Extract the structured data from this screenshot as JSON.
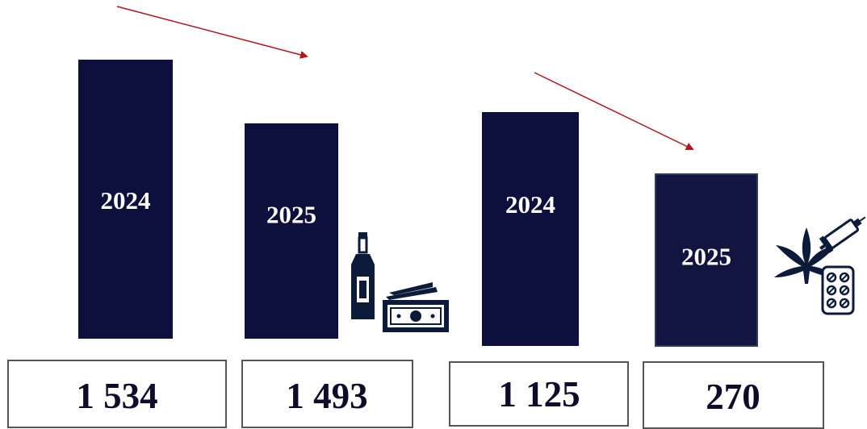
{
  "colors": {
    "bar": "#0d0f3d",
    "bar_last": "#111540",
    "arrow": "#b0151d",
    "icon": "#0d1b3a",
    "text_dark": "#0d0d2b"
  },
  "chart_data": [
    {
      "type": "bar",
      "categories": [
        "2024",
        "2025"
      ],
      "values": [
        1534,
        1493
      ],
      "value_labels": [
        "1 534",
        "1 493"
      ],
      "icons": [
        "bottle-icon",
        "money-icon"
      ]
    },
    {
      "type": "bar",
      "categories": [
        "2024",
        "2025"
      ],
      "values": [
        1125,
        270
      ],
      "value_labels": [
        "1 125",
        "270"
      ],
      "icons": [
        "cannabis-leaf-icon",
        "syringe-icon",
        "pills-icon"
      ]
    }
  ]
}
